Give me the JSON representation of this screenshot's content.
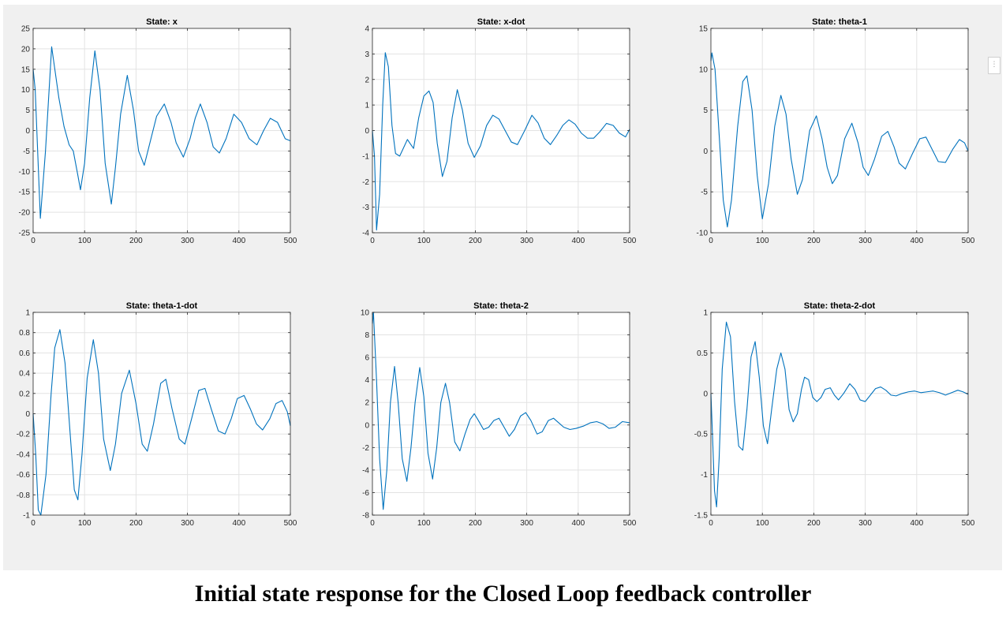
{
  "caption": "Initial state response for the Closed Loop feedback controller",
  "colors": {
    "line": "#0072BD",
    "grid": "#e3e3e3",
    "axes": "#262626",
    "figure_bg": "#f0f0f0"
  },
  "side_handle_icon": "dots-vertical-icon",
  "chart_data": [
    {
      "type": "line",
      "title": "State: x",
      "xlim": [
        0,
        500
      ],
      "ylim": [
        -25,
        25
      ],
      "xticks": [
        0,
        100,
        200,
        300,
        400,
        500
      ],
      "yticks": [
        -25,
        -20,
        -15,
        -10,
        -5,
        0,
        5,
        10,
        15,
        20,
        25
      ],
      "grid": true,
      "series": [
        {
          "x": [
            0,
            4,
            14,
            24,
            36,
            50,
            60,
            70,
            78,
            87,
            92,
            100,
            110,
            120,
            130,
            140,
            152,
            160,
            170,
            183,
            195,
            205,
            216,
            225,
            240,
            255,
            268,
            278,
            292,
            305,
            315,
            325,
            338,
            350,
            362,
            375,
            390,
            405,
            420,
            435,
            448,
            461,
            475,
            490,
            500
          ],
          "y": [
            15,
            10,
            -21.5,
            -5,
            20.5,
            8,
            1,
            -3.5,
            -5,
            -11,
            -14.5,
            -8,
            8,
            19.5,
            10,
            -8,
            -18,
            -9,
            4,
            13.5,
            5,
            -5,
            -8.5,
            -4,
            3.5,
            6.5,
            2,
            -3,
            -6.5,
            -2,
            3,
            6.5,
            2,
            -4,
            -5.5,
            -2,
            4,
            2,
            -2,
            -3.5,
            0,
            3,
            2,
            -2,
            -2.5
          ]
        }
      ]
    },
    {
      "type": "line",
      "title": "State: x-dot",
      "xlim": [
        0,
        500
      ],
      "ylim": [
        -4,
        4
      ],
      "xticks": [
        0,
        100,
        200,
        300,
        400,
        500
      ],
      "yticks": [
        -4,
        -3,
        -2,
        -1,
        0,
        1,
        2,
        3,
        4
      ],
      "grid": true,
      "series": [
        {
          "x": [
            0,
            4,
            8,
            14,
            20,
            25,
            31,
            38,
            45,
            53,
            60,
            68,
            73,
            80,
            90,
            100,
            110,
            118,
            126,
            136,
            145,
            155,
            165,
            175,
            186,
            198,
            210,
            222,
            234,
            246,
            258,
            270,
            282,
            296,
            310,
            322,
            334,
            346,
            358,
            370,
            382,
            394,
            406,
            418,
            430,
            442,
            455,
            468,
            480,
            492,
            500
          ],
          "y": [
            0,
            -1,
            -3.9,
            -2.5,
            1,
            3.05,
            2.5,
            0.2,
            -0.9,
            -1,
            -0.7,
            -0.35,
            -0.5,
            -0.7,
            0.5,
            1.35,
            1.55,
            1.1,
            -0.5,
            -1.8,
            -1.2,
            0.5,
            1.6,
            0.8,
            -0.5,
            -1.05,
            -0.6,
            0.2,
            0.6,
            0.45,
            0,
            -0.45,
            -0.55,
            0,
            0.6,
            0.3,
            -0.3,
            -0.55,
            -0.2,
            0.2,
            0.42,
            0.25,
            -0.1,
            -0.3,
            -0.3,
            -0.05,
            0.28,
            0.2,
            -0.1,
            -0.25,
            0.05
          ]
        }
      ]
    },
    {
      "type": "line",
      "title": "State: theta-1",
      "xlim": [
        0,
        500
      ],
      "ylim": [
        -10,
        15
      ],
      "xticks": [
        0,
        100,
        200,
        300,
        400,
        500
      ],
      "yticks": [
        -10,
        -5,
        0,
        5,
        10,
        15
      ],
      "grid": true,
      "series": [
        {
          "x": [
            0,
            2,
            8,
            16,
            24,
            32,
            40,
            52,
            62,
            70,
            80,
            90,
            100,
            112,
            124,
            136,
            146,
            156,
            168,
            178,
            192,
            205,
            216,
            226,
            236,
            246,
            260,
            274,
            286,
            296,
            306,
            318,
            332,
            344,
            356,
            366,
            378,
            392,
            406,
            418,
            430,
            442,
            456,
            470,
            483,
            493,
            500
          ],
          "y": [
            11,
            12,
            10,
            2,
            -6,
            -9.3,
            -6,
            3,
            8.5,
            9.2,
            5,
            -3,
            -8.3,
            -4,
            3,
            6.8,
            4.5,
            -1,
            -5.3,
            -3.5,
            2.5,
            4.3,
            1.5,
            -2,
            -4,
            -3,
            1.5,
            3.4,
            1,
            -2,
            -3,
            -1,
            1.8,
            2.4,
            0.5,
            -1.5,
            -2.2,
            -0.3,
            1.5,
            1.7,
            0.2,
            -1.3,
            -1.4,
            0.2,
            1.4,
            1,
            0
          ]
        }
      ]
    },
    {
      "type": "line",
      "title": "State: theta-1-dot",
      "xlim": [
        0,
        500
      ],
      "ylim": [
        -1,
        1
      ],
      "xticks": [
        0,
        100,
        200,
        300,
        400,
        500
      ],
      "yticks": [
        -1,
        -0.8,
        -0.6,
        -0.4,
        -0.2,
        0,
        0.2,
        0.4,
        0.6,
        0.8,
        1
      ],
      "grid": true,
      "series": [
        {
          "x": [
            0,
            5,
            10,
            15,
            25,
            35,
            42,
            52,
            62,
            72,
            80,
            87,
            95,
            105,
            117,
            127,
            137,
            150,
            160,
            172,
            187,
            200,
            212,
            222,
            234,
            248,
            258,
            270,
            284,
            295,
            308,
            322,
            334,
            346,
            360,
            373,
            385,
            397,
            410,
            422,
            434,
            446,
            460,
            472,
            484,
            494,
            500
          ],
          "y": [
            0,
            -0.4,
            -0.95,
            -1,
            -0.6,
            0.2,
            0.65,
            0.83,
            0.5,
            -0.2,
            -0.75,
            -0.85,
            -0.4,
            0.35,
            0.73,
            0.4,
            -0.25,
            -0.56,
            -0.3,
            0.2,
            0.43,
            0.1,
            -0.3,
            -0.37,
            -0.1,
            0.3,
            0.34,
            0.05,
            -0.25,
            -0.3,
            -0.05,
            0.23,
            0.25,
            0.05,
            -0.17,
            -0.2,
            -0.05,
            0.15,
            0.18,
            0.05,
            -0.1,
            -0.16,
            -0.05,
            0.1,
            0.13,
            0.02,
            -0.12
          ]
        }
      ]
    },
    {
      "type": "line",
      "title": "State: theta-2",
      "xlim": [
        0,
        500
      ],
      "ylim": [
        -8,
        10
      ],
      "xticks": [
        0,
        100,
        200,
        300,
        400,
        500
      ],
      "yticks": [
        -8,
        -6,
        -4,
        -2,
        0,
        2,
        4,
        6,
        8,
        10
      ],
      "grid": true,
      "series": [
        {
          "x": [
            0,
            2,
            8,
            14,
            21,
            28,
            35,
            43,
            50,
            58,
            67,
            75,
            83,
            92,
            100,
            108,
            117,
            125,
            133,
            142,
            150,
            160,
            170,
            180,
            190,
            198,
            206,
            216,
            226,
            236,
            246,
            256,
            266,
            276,
            288,
            298,
            308,
            320,
            330,
            342,
            352,
            362,
            372,
            384,
            396,
            410,
            424,
            436,
            448,
            460,
            472,
            486,
            500
          ],
          "y": [
            9,
            10,
            4,
            -3,
            -7.5,
            -4,
            2,
            5.2,
            2,
            -3,
            -5,
            -2,
            2,
            5.1,
            2.5,
            -2.5,
            -4.8,
            -2,
            2,
            3.7,
            2,
            -1.5,
            -2.3,
            -0.8,
            0.5,
            1,
            0.4,
            -0.4,
            -0.2,
            0.4,
            0.6,
            -0.2,
            -1,
            -0.4,
            0.8,
            1.1,
            0.4,
            -0.8,
            -0.6,
            0.4,
            0.6,
            0.2,
            -0.2,
            -0.4,
            -0.3,
            -0.1,
            0.2,
            0.3,
            0.1,
            -0.3,
            -0.2,
            0.3,
            0.2
          ]
        }
      ]
    },
    {
      "type": "line",
      "title": "State: theta-2-dot",
      "xlim": [
        0,
        500
      ],
      "ylim": [
        -1.5,
        1
      ],
      "xticks": [
        0,
        100,
        200,
        300,
        400,
        500
      ],
      "yticks": [
        -1.5,
        -1,
        -0.5,
        0,
        0.5,
        1
      ],
      "grid": true,
      "series": [
        {
          "x": [
            0,
            3,
            7,
            11,
            16,
            22,
            30,
            38,
            46,
            54,
            62,
            70,
            78,
            86,
            94,
            102,
            110,
            118,
            128,
            136,
            144,
            152,
            160,
            168,
            176,
            182,
            190,
            198,
            206,
            214,
            222,
            232,
            240,
            248,
            258,
            270,
            280,
            290,
            300,
            310,
            320,
            330,
            340,
            350,
            360,
            372,
            384,
            396,
            408,
            420,
            432,
            444,
            456,
            468,
            480,
            490,
            500
          ],
          "y": [
            0,
            -0.5,
            -1.2,
            -1.4,
            -0.8,
            0.3,
            0.88,
            0.7,
            -0.1,
            -0.65,
            -0.7,
            -0.2,
            0.45,
            0.64,
            0.2,
            -0.4,
            -0.62,
            -0.2,
            0.3,
            0.5,
            0.3,
            -0.2,
            -0.35,
            -0.25,
            0.05,
            0.2,
            0.17,
            -0.05,
            -0.1,
            -0.05,
            0.05,
            0.07,
            -0.02,
            -0.08,
            0,
            0.12,
            0.05,
            -0.08,
            -0.1,
            -0.02,
            0.06,
            0.08,
            0.04,
            -0.02,
            -0.03,
            0,
            0.02,
            0.03,
            0.01,
            0.02,
            0.03,
            0.01,
            -0.02,
            0.01,
            0.04,
            0.02,
            -0.01
          ]
        }
      ]
    }
  ]
}
